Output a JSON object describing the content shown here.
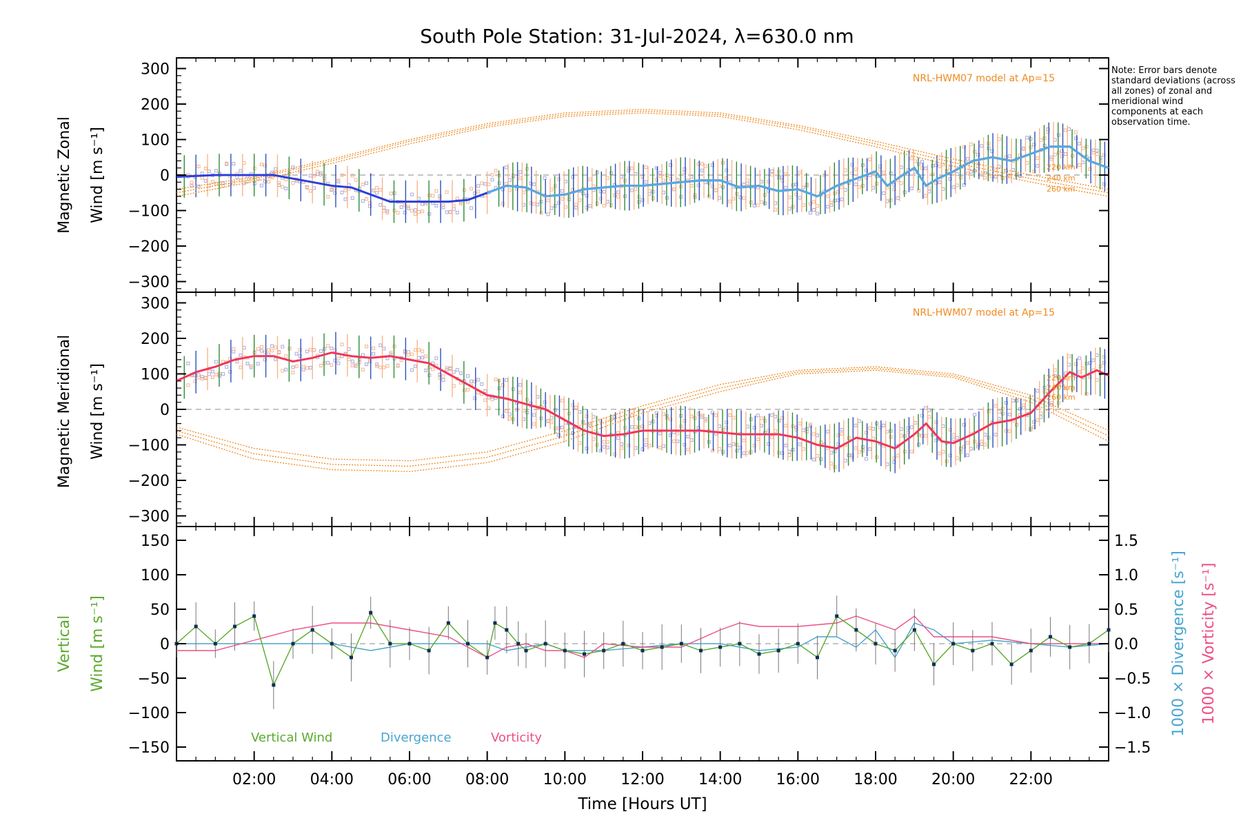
{
  "title": "South Pole Station: 31-Jul-2024, λ=630.0 nm",
  "note": "Note: Error bars denote standard deviations (across all zones) of zonal and meridional wind components at each observation time.",
  "xaxis": {
    "label": "Time [Hours UT]",
    "ticks": [
      "02:00",
      "04:00",
      "06:00",
      "08:00",
      "10:00",
      "12:00",
      "14:00",
      "16:00",
      "18:00",
      "20:00",
      "22:00"
    ],
    "tick_hours": [
      2,
      4,
      6,
      8,
      10,
      12,
      14,
      16,
      18,
      20,
      22
    ],
    "range_hours": [
      0,
      24
    ]
  },
  "colors": {
    "zonal": "#2b3fd8",
    "zonal_light": "#58a9e0",
    "meridional": "#f0365a",
    "model": "#f08a1f",
    "vertical": "#5aaa2e",
    "divergence": "#4aa5d0",
    "vorticity": "#ee4f86",
    "err_green": "#2f8a35",
    "err_blue": "#2d4fb7",
    "err_orange": "#f7b48c",
    "scatter": "#a8a8e0",
    "points": "#0f2f52"
  },
  "panels": {
    "zonal": {
      "ylabel_line1": "Magnetic Zonal",
      "ylabel_line2": "Wind [m s⁻¹]",
      "model_label": "NRL-HWM07 model at Ap=15",
      "height_labels": [
        "220 km",
        "240 km",
        "260 km"
      ],
      "yticks": [
        "300",
        "200",
        "100",
        "0",
        "−100",
        "−200",
        "−300"
      ]
    },
    "meridional": {
      "ylabel_line1": "Magnetic Meridional",
      "ylabel_line2": "Wind [m s⁻¹]",
      "model_label": "NRL-HWM07 model at Ap=15",
      "height_labels": [
        "220 km",
        "240 km",
        "260 km"
      ],
      "yticks": [
        "300",
        "200",
        "100",
        "0",
        "−100",
        "−200",
        "−300"
      ]
    },
    "vertical": {
      "ylabel_line1": "Vertical",
      "ylabel_line2": "Wind [m s⁻¹]",
      "right_label_div": "1000 × Divergence [s⁻¹]",
      "right_label_vor": "1000 × Vorticity [s⁻¹]",
      "yticks": [
        "150",
        "100",
        "50",
        "0",
        "−50",
        "−100",
        "−150"
      ],
      "right_ticks": [
        "1.5",
        "1.0",
        "0.5",
        "0.0",
        "−0.5",
        "−1.0",
        "−1.5"
      ],
      "legend": [
        "Vertical Wind",
        "Divergence",
        "Vorticity"
      ]
    }
  },
  "chart_data": [
    {
      "type": "line",
      "title": "Magnetic Zonal Wind",
      "xlabel": "Time [Hours UT]",
      "ylabel": "Magnetic Zonal Wind [m s⁻¹]",
      "xlim": [
        0,
        24
      ],
      "ylim": [
        -330,
        330
      ],
      "series": [
        {
          "name": "Zonal wind (mean)",
          "x": [
            0,
            1,
            2,
            2.5,
            3,
            3.5,
            4,
            4.5,
            5,
            5.5,
            6,
            6.5,
            7,
            7.5,
            8,
            8.5,
            9,
            9.5,
            10,
            10.5,
            11,
            11.5,
            12,
            12.5,
            13,
            13.5,
            14,
            14.5,
            15,
            15.5,
            16,
            16.5,
            17,
            17.5,
            18,
            18.3,
            18.7,
            19,
            19.3,
            19.6,
            20,
            20.5,
            21,
            21.5,
            22,
            22.5,
            23,
            23.5,
            24
          ],
          "y": [
            -5,
            0,
            0,
            0,
            -10,
            -20,
            -30,
            -35,
            -55,
            -75,
            -75,
            -75,
            -75,
            -70,
            -50,
            -30,
            -35,
            -60,
            -55,
            -40,
            -35,
            -30,
            -30,
            -25,
            -20,
            -15,
            -15,
            -35,
            -30,
            -45,
            -40,
            -60,
            -30,
            -10,
            10,
            -30,
            0,
            20,
            -30,
            -10,
            10,
            40,
            50,
            40,
            60,
            80,
            80,
            40,
            20
          ]
        },
        {
          "name": "Model 220 km",
          "x": [
            0,
            2,
            4,
            6,
            8,
            10,
            12,
            14,
            16,
            18,
            20,
            22,
            24
          ],
          "y": [
            -40,
            -5,
            45,
            100,
            145,
            175,
            185,
            175,
            140,
            95,
            45,
            0,
            -40
          ]
        },
        {
          "name": "Model 240 km",
          "x": [
            0,
            2,
            4,
            6,
            8,
            10,
            12,
            14,
            16,
            18,
            20,
            22,
            24
          ],
          "y": [
            -50,
            -10,
            40,
            95,
            140,
            170,
            180,
            170,
            135,
            88,
            35,
            -10,
            -50
          ]
        },
        {
          "name": "Model 260 km",
          "x": [
            0,
            2,
            4,
            6,
            8,
            10,
            12,
            14,
            16,
            18,
            20,
            22,
            24
          ],
          "y": [
            -60,
            -18,
            33,
            88,
            135,
            165,
            175,
            165,
            128,
            80,
            25,
            -20,
            -60
          ]
        }
      ]
    },
    {
      "type": "line",
      "title": "Magnetic Meridional Wind",
      "xlabel": "Time [Hours UT]",
      "ylabel": "Magnetic Meridional Wind [m s⁻¹]",
      "xlim": [
        0,
        24
      ],
      "ylim": [
        -330,
        330
      ],
      "series": [
        {
          "name": "Meridional wind (mean)",
          "x": [
            0,
            0.5,
            1,
            1.5,
            2,
            2.5,
            3,
            3.5,
            4,
            4.5,
            5,
            5.5,
            6,
            6.5,
            7,
            7.5,
            8,
            8.5,
            9,
            9.5,
            10,
            10.5,
            11,
            11.5,
            12,
            12.5,
            13,
            13.5,
            14,
            14.5,
            15,
            15.5,
            16,
            16.5,
            17,
            17.5,
            18,
            18.5,
            19,
            19.3,
            19.7,
            20,
            20.5,
            21,
            21.5,
            22,
            22.5,
            23,
            23.3,
            23.7,
            24
          ],
          "y": [
            80,
            105,
            120,
            140,
            150,
            150,
            135,
            145,
            160,
            150,
            145,
            150,
            140,
            130,
            100,
            70,
            40,
            30,
            15,
            0,
            -30,
            -60,
            -75,
            -70,
            -60,
            -60,
            -60,
            -60,
            -65,
            -70,
            -70,
            -70,
            -80,
            -100,
            -110,
            -80,
            -90,
            -110,
            -70,
            -40,
            -90,
            -95,
            -70,
            -40,
            -30,
            -10,
            50,
            105,
            90,
            110,
            95
          ]
        },
        {
          "name": "Model 220 km",
          "x": [
            0,
            2,
            4,
            6,
            8,
            10,
            12,
            14,
            16,
            18,
            20,
            22,
            24
          ],
          "y": [
            -50,
            -110,
            -140,
            -145,
            -120,
            -60,
            10,
            70,
            110,
            120,
            100,
            40,
            -60
          ]
        },
        {
          "name": "Model 240 km",
          "x": [
            0,
            2,
            4,
            6,
            8,
            10,
            12,
            14,
            16,
            18,
            20,
            22,
            24
          ],
          "y": [
            -60,
            -125,
            -155,
            -160,
            -135,
            -75,
            0,
            60,
            105,
            115,
            95,
            30,
            -75
          ]
        },
        {
          "name": "Model 260 km",
          "x": [
            0,
            2,
            4,
            6,
            8,
            10,
            12,
            14,
            16,
            18,
            20,
            22,
            24
          ],
          "y": [
            -70,
            -140,
            -170,
            -175,
            -150,
            -90,
            -10,
            50,
            100,
            110,
            90,
            20,
            -90
          ]
        }
      ]
    },
    {
      "type": "line",
      "title": "Vertical Wind, Divergence, Vorticity",
      "xlabel": "Time [Hours UT]",
      "ylabel": "Vertical Wind [m s⁻¹]",
      "ylabel_right": "1000 × Divergence / Vorticity [s⁻¹]",
      "xlim": [
        0,
        24
      ],
      "ylim": [
        -170,
        170
      ],
      "ylim_right": [
        -1.7,
        1.7
      ],
      "series": [
        {
          "name": "Vertical Wind",
          "x": [
            0,
            0.5,
            1,
            1.5,
            2,
            2.5,
            3,
            3.5,
            4,
            4.5,
            5,
            5.5,
            6,
            6.5,
            7,
            7.5,
            8,
            8.2,
            8.5,
            8.8,
            9,
            9.5,
            10,
            10.5,
            11,
            11.5,
            12,
            12.5,
            13,
            13.5,
            14,
            14.5,
            15,
            15.5,
            16,
            16.5,
            17,
            17.5,
            18,
            18.5,
            19,
            19.5,
            20,
            20.5,
            21,
            21.5,
            22,
            22.5,
            23,
            23.5,
            24
          ],
          "y": [
            0,
            25,
            0,
            25,
            40,
            -60,
            0,
            20,
            0,
            -20,
            45,
            0,
            0,
            -10,
            30,
            0,
            -20,
            30,
            20,
            0,
            -10,
            0,
            -10,
            -15,
            -10,
            0,
            -10,
            -5,
            0,
            -10,
            -5,
            0,
            -15,
            -10,
            0,
            -20,
            40,
            20,
            0,
            -10,
            20,
            -30,
            0,
            -10,
            0,
            -30,
            -10,
            10,
            -5,
            0,
            20
          ]
        },
        {
          "name": "Divergence",
          "x": [
            0,
            1,
            2,
            3,
            4,
            5,
            6,
            7,
            8,
            8.5,
            9,
            9.5,
            10,
            11,
            12,
            13,
            14,
            15,
            16,
            16.5,
            17,
            17.5,
            18,
            18.5,
            19,
            19.5,
            20,
            21,
            22,
            23,
            24
          ],
          "y": [
            0.0,
            0.0,
            0.0,
            0.0,
            0.0,
            -0.1,
            0.0,
            0.0,
            0.0,
            -0.1,
            -0.05,
            0.0,
            -0.1,
            -0.1,
            -0.05,
            0.0,
            0.0,
            -0.1,
            -0.05,
            0.1,
            0.1,
            -0.05,
            0.2,
            -0.2,
            0.3,
            0.2,
            0.0,
            0.05,
            0.0,
            -0.05,
            0.0
          ]
        },
        {
          "name": "Vorticity",
          "x": [
            0,
            1,
            2,
            3,
            4,
            5,
            6,
            7,
            8,
            8.5,
            9,
            9.5,
            10,
            10.5,
            11,
            12,
            13,
            14,
            14.5,
            15,
            16,
            17,
            17.5,
            18,
            18.5,
            19,
            19.5,
            20,
            21,
            22,
            23,
            24
          ],
          "y": [
            -0.1,
            -0.1,
            0.05,
            0.2,
            0.3,
            0.3,
            0.2,
            0.1,
            -0.2,
            -0.05,
            0.0,
            -0.1,
            -0.1,
            -0.2,
            0.0,
            -0.05,
            -0.05,
            0.2,
            0.3,
            0.25,
            0.25,
            0.3,
            0.4,
            0.3,
            0.2,
            0.4,
            0.1,
            0.1,
            0.1,
            0.0,
            0.0,
            0.0
          ]
        }
      ]
    }
  ]
}
